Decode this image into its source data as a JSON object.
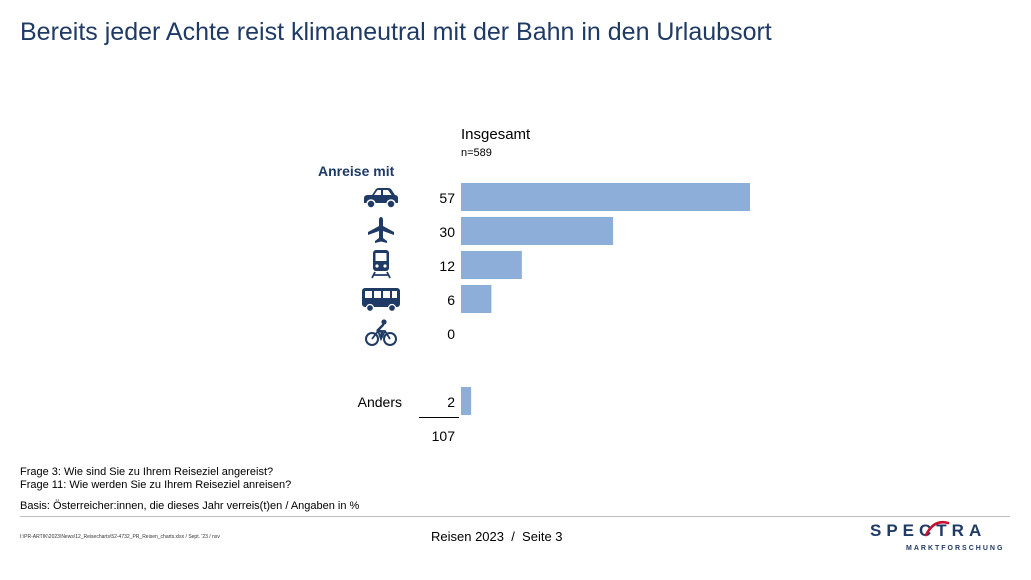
{
  "title": "Bereits jeder Achte reist klimaneutral mit der Bahn in den Urlaubsort",
  "column_header": "Insgesamt",
  "column_n": "n=589",
  "row_header": "Anreise mit",
  "colors": {
    "bar": "#8daed8",
    "title": "#1f3a64",
    "icon": "#1f3a64"
  },
  "chart_data": {
    "type": "bar",
    "orientation": "horizontal",
    "categories": [
      "car-icon",
      "plane-icon",
      "train-icon",
      "bus-icon",
      "bicycle-icon",
      "Anders"
    ],
    "category_icons": [
      "car-icon",
      "plane-icon",
      "train-icon",
      "bus-icon",
      "bicycle-icon",
      null
    ],
    "category_labels": [
      "",
      "",
      "",
      "",
      "",
      "Anders"
    ],
    "values": [
      57,
      30,
      12,
      6,
      0,
      2
    ],
    "total": 107,
    "unit": "%",
    "xlim": [
      0,
      100
    ]
  },
  "total_label": "107",
  "footnotes": [
    "Frage 3: Wie sind Sie zu Ihrem Reiseziel angereist?",
    "Frage 11: Wie werden Sie zu Ihrem Reiseziel anreisen?"
  ],
  "basis": "Basis: Österreicher:innen, die dieses Jahr verreis(t)en / Angaben in %",
  "file_path": "I:\\PR-ARTIK\\2023\\News\\12_Reisecharts\\52-4732_PR_Reisen_charts.xlsx / Sept. '23 / nsv",
  "footer": "Reisen 2023  /  Seite 3",
  "logo": {
    "main": "SPECTRA",
    "sub": "MARKTFORSCHUNG"
  }
}
